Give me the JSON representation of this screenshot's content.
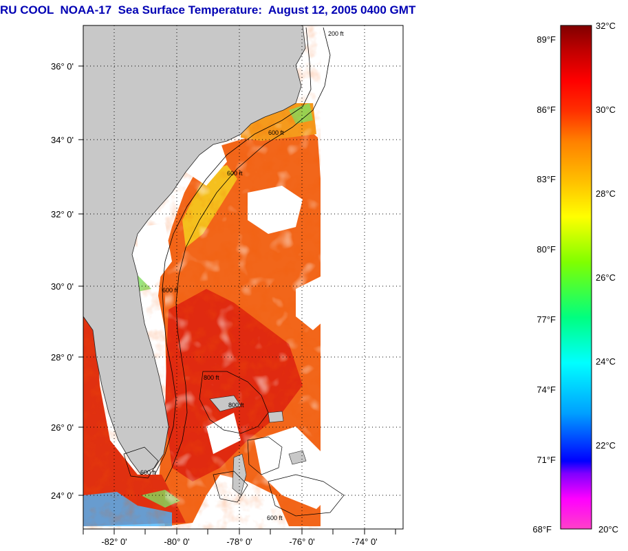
{
  "title": "RU COOL  NOAA-17  Sea Surface Temperature:  August 12, 2005 0400 GMT",
  "map": {
    "lat_labels": [
      "36° 0'",
      "34° 0'",
      "32° 0'",
      "30° 0'",
      "28° 0'",
      "26° 0'",
      "24° 0'"
    ],
    "lon_labels": [
      "-82° 0'",
      "-80° 0'",
      "-78° 0'",
      "-76° 0'",
      "-74° 0'"
    ],
    "contour_labels": [
      "200 ft",
      "600 ft",
      "600 ft",
      "600 ft",
      "800 ft",
      "800 ft",
      "600 ft",
      "600 ft"
    ],
    "colors": {
      "land": "#c8c8c8",
      "cloud": "#ffffff",
      "frame": "#000000",
      "grid": "#000000"
    }
  },
  "colorbar": {
    "fahrenheit_labels": [
      "89°F",
      "86°F",
      "83°F",
      "80°F",
      "77°F",
      "74°F",
      "71°F",
      "68°F"
    ],
    "celsius_labels": [
      "32°C",
      "30°C",
      "28°C",
      "26°C",
      "24°C",
      "22°C",
      "20°C"
    ],
    "range_c": [
      20,
      32
    ],
    "stops": [
      "#ff40c8",
      "#ff00ff",
      "#8000ff",
      "#0000ff",
      "#00a0ff",
      "#00ffff",
      "#00ff80",
      "#80ff00",
      "#ffff00",
      "#ffc000",
      "#ff8000",
      "#ff3000",
      "#ff0000",
      "#c00000",
      "#800000"
    ]
  }
}
